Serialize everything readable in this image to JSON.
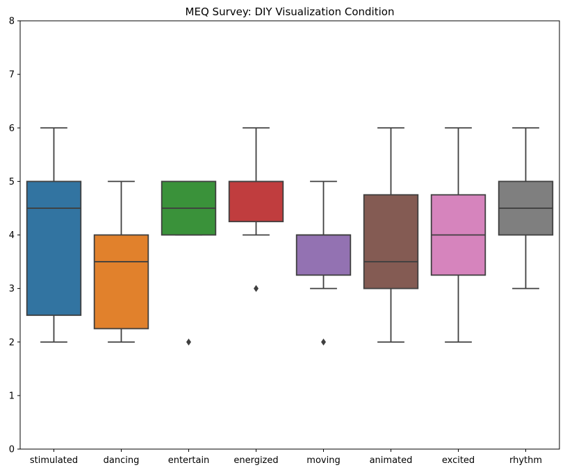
{
  "chart_data": {
    "type": "box",
    "title": "MEQ Survey: DIY Visualization Condition",
    "xlabel": "",
    "ylabel": "",
    "ylim": [
      0,
      8
    ],
    "yticks": [
      0,
      1,
      2,
      3,
      4,
      5,
      6,
      7,
      8
    ],
    "grid": false,
    "categories": [
      "stimulated",
      "dancing",
      "entertain",
      "energized",
      "moving",
      "animated",
      "excited",
      "rhythm"
    ],
    "boxes": [
      {
        "category": "stimulated",
        "whisker_low": 2,
        "q1": 2.5,
        "median": 4.5,
        "q3": 5,
        "whisker_high": 6,
        "outliers": [],
        "color": "#3274a1"
      },
      {
        "category": "dancing",
        "whisker_low": 2,
        "q1": 2.25,
        "median": 3.5,
        "q3": 4,
        "whisker_high": 5,
        "outliers": [],
        "color": "#e1812c"
      },
      {
        "category": "entertain",
        "whisker_low": 4,
        "q1": 4,
        "median": 4.5,
        "q3": 5,
        "whisker_high": 5,
        "outliers": [
          2
        ],
        "color": "#3a923a"
      },
      {
        "category": "energized",
        "whisker_low": 4,
        "q1": 4.25,
        "median": 5,
        "q3": 5,
        "whisker_high": 6,
        "outliers": [
          3
        ],
        "color": "#c03d3e"
      },
      {
        "category": "moving",
        "whisker_low": 3,
        "q1": 3.25,
        "median": 4,
        "q3": 4,
        "whisker_high": 5,
        "outliers": [
          2
        ],
        "color": "#9372b2"
      },
      {
        "category": "animated",
        "whisker_low": 2,
        "q1": 3,
        "median": 3.5,
        "q3": 4.75,
        "whisker_high": 6,
        "outliers": [],
        "color": "#845b53"
      },
      {
        "category": "excited",
        "whisker_low": 2,
        "q1": 3.25,
        "median": 4,
        "q3": 4.75,
        "whisker_high": 6,
        "outliers": [],
        "color": "#d684bd"
      },
      {
        "category": "rhythm",
        "whisker_low": 3,
        "q1": 4,
        "median": 4.5,
        "q3": 5,
        "whisker_high": 6,
        "outliers": [],
        "color": "#7f7f7f"
      }
    ],
    "line_color": "#3f3f3f"
  }
}
